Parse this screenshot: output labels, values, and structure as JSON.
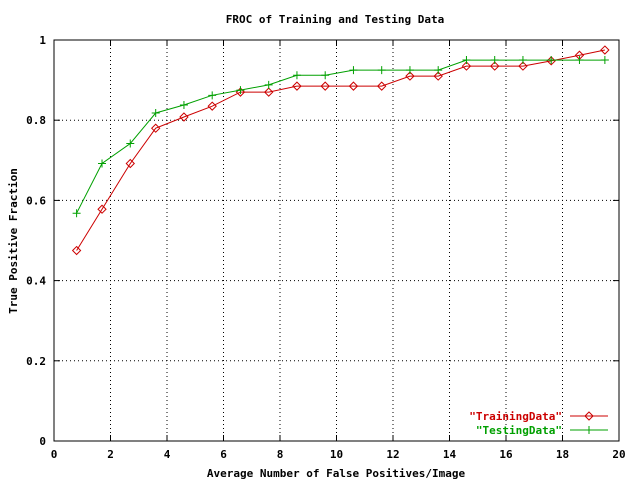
{
  "chart_data": {
    "type": "line",
    "title": "FROC of Training and Testing Data",
    "xlabel": "Average Number of False Positives/Image",
    "ylabel": "True Positive Fraction",
    "xlim": [
      0,
      20
    ],
    "ylim": [
      0,
      1
    ],
    "xticks": [
      "0",
      "2",
      "4",
      "6",
      "8",
      "10",
      "12",
      "14",
      "16",
      "18",
      "20"
    ],
    "yticks": [
      "0",
      "0.2",
      "0.4",
      "0.6",
      "0.8",
      "1"
    ],
    "grid": true,
    "legend_position": "bottom-right",
    "series": [
      {
        "name": "\"TrainingData\"",
        "color": "#cc0000",
        "marker": "diamond",
        "x": [
          0.8,
          1.7,
          2.7,
          3.6,
          4.6,
          5.6,
          6.6,
          7.6,
          8.6,
          9.6,
          10.6,
          11.6,
          12.6,
          13.6,
          14.6,
          15.6,
          16.6,
          17.6,
          18.6,
          19.5
        ],
        "y": [
          0.475,
          0.578,
          0.692,
          0.78,
          0.808,
          0.835,
          0.87,
          0.87,
          0.885,
          0.885,
          0.885,
          0.885,
          0.91,
          0.91,
          0.935,
          0.935,
          0.935,
          0.948,
          0.962,
          0.975
        ]
      },
      {
        "name": "\"TestingData\"",
        "color": "#00a000",
        "marker": "plus",
        "x": [
          0.8,
          1.7,
          2.7,
          3.6,
          4.6,
          5.6,
          6.6,
          7.6,
          8.6,
          9.6,
          10.6,
          11.6,
          12.6,
          13.6,
          14.6,
          15.6,
          16.6,
          17.6,
          18.6,
          19.5
        ],
        "y": [
          0.568,
          0.692,
          0.742,
          0.818,
          0.838,
          0.862,
          0.875,
          0.888,
          0.912,
          0.912,
          0.925,
          0.925,
          0.925,
          0.925,
          0.95,
          0.95,
          0.95,
          0.95,
          0.95,
          0.95
        ]
      }
    ]
  }
}
